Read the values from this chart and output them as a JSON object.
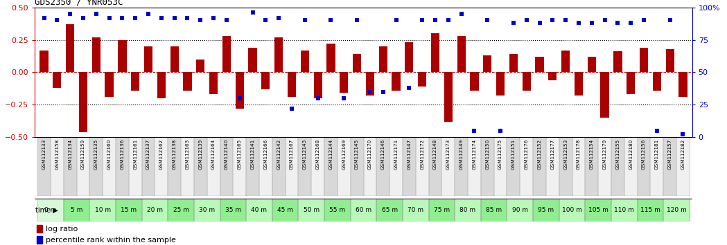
{
  "title": "GDS2350 / YNR053C",
  "gsm_labels": [
    "GSM112133",
    "GSM112158",
    "GSM112134",
    "GSM112159",
    "GSM112135",
    "GSM112160",
    "GSM112136",
    "GSM112161",
    "GSM112137",
    "GSM112162",
    "GSM112138",
    "GSM112163",
    "GSM112139",
    "GSM112164",
    "GSM112140",
    "GSM112165",
    "GSM112141",
    "GSM112166",
    "GSM112142",
    "GSM112167",
    "GSM112143",
    "GSM112168",
    "GSM112144",
    "GSM112169",
    "GSM112145",
    "GSM112170",
    "GSM112146",
    "GSM112171",
    "GSM112147",
    "GSM112172",
    "GSM112148",
    "GSM112173",
    "GSM112149",
    "GSM112174",
    "GSM112150",
    "GSM112175",
    "GSM112151",
    "GSM112176",
    "GSM112152",
    "GSM112177",
    "GSM112153",
    "GSM112178",
    "GSM112154",
    "GSM112179",
    "GSM112155",
    "GSM112180",
    "GSM112156",
    "GSM112181",
    "GSM112157",
    "GSM112182"
  ],
  "time_labels": [
    "0 m",
    "5 m",
    "10 m",
    "15 m",
    "20 m",
    "25 m",
    "30 m",
    "35 m",
    "40 m",
    "45 m",
    "50 m",
    "55 m",
    "60 m",
    "65 m",
    "70 m",
    "75 m",
    "80 m",
    "85 m",
    "90 m",
    "95 m",
    "100 m",
    "105 m",
    "110 m",
    "115 m",
    "120 m"
  ],
  "log_ratio": [
    0.17,
    -0.12,
    0.37,
    -0.46,
    0.27,
    -0.19,
    0.25,
    -0.14,
    0.2,
    -0.2,
    0.2,
    -0.14,
    0.1,
    -0.17,
    0.28,
    -0.28,
    0.19,
    -0.13,
    0.27,
    -0.19,
    0.17,
    -0.2,
    0.22,
    -0.16,
    0.14,
    -0.18,
    0.2,
    -0.14,
    0.23,
    -0.11,
    0.3,
    -0.38,
    0.28,
    -0.14,
    0.13,
    -0.18,
    0.14,
    -0.14,
    0.12,
    -0.06,
    0.17,
    -0.18,
    0.12,
    -0.35,
    0.16,
    -0.17,
    0.19,
    -0.14,
    0.18,
    -0.19
  ],
  "percentile": [
    92,
    90,
    95,
    92,
    95,
    92,
    92,
    92,
    95,
    92,
    92,
    92,
    90,
    92,
    90,
    30,
    96,
    90,
    92,
    22,
    90,
    30,
    90,
    30,
    90,
    35,
    35,
    90,
    38,
    90,
    90,
    90,
    95,
    5,
    90,
    5,
    88,
    90,
    88,
    90,
    90,
    88,
    88,
    90,
    88,
    88,
    90,
    5,
    90,
    2
  ],
  "bar_color": "#aa0000",
  "dot_color": "#0000cc",
  "bg_color": "#ffffff",
  "ylim_left": [
    -0.5,
    0.5
  ],
  "ylim_right": [
    0,
    100
  ],
  "left_ticks": [
    -0.5,
    -0.25,
    0.0,
    0.25,
    0.5
  ],
  "right_ticks": [
    0,
    25,
    50,
    75,
    100
  ],
  "right_tick_labels": [
    "0",
    "25",
    "50",
    "75",
    "100%"
  ],
  "dotted_lines": [
    0.25,
    -0.25
  ],
  "red_dashed_line": 0.0,
  "gsm_bg_even": "#d8d8d8",
  "gsm_bg_odd": "#f0f0f0",
  "time_bg_even": "#90ee90",
  "time_bg_odd": "#b8f8b8",
  "time_first_bg": "#d8f8d8"
}
